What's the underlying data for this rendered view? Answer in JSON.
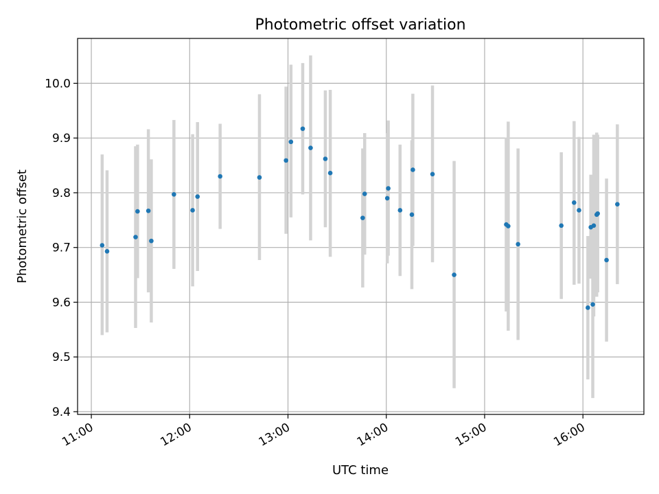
{
  "chart_data": {
    "type": "scatter",
    "title": "Photometric offset variation",
    "xlabel": "UTC time",
    "ylabel": "Photometric offset",
    "x_unit": "hours (UTC)",
    "xlim": [
      10.86,
      16.62
    ],
    "ylim": [
      9.395,
      10.082
    ],
    "grid": true,
    "colors": {
      "point": "#1f77b4",
      "errorbar": "#d3d3d3"
    },
    "x_ticks": [
      {
        "value": 11,
        "label": "11:00"
      },
      {
        "value": 12,
        "label": "12:00"
      },
      {
        "value": 13,
        "label": "13:00"
      },
      {
        "value": 14,
        "label": "14:00"
      },
      {
        "value": 15,
        "label": "15:00"
      },
      {
        "value": 16,
        "label": "16:00"
      }
    ],
    "y_ticks": [
      {
        "value": 9.4,
        "label": "9.4"
      },
      {
        "value": 9.5,
        "label": "9.5"
      },
      {
        "value": 9.6,
        "label": "9.6"
      },
      {
        "value": 9.7,
        "label": "9.7"
      },
      {
        "value": 9.8,
        "label": "9.8"
      },
      {
        "value": 9.9,
        "label": "9.9"
      },
      {
        "value": 10.0,
        "label": "10.0"
      }
    ],
    "points": [
      {
        "x": 11.11,
        "y": 9.704,
        "low": 9.54,
        "high": 9.87
      },
      {
        "x": 11.16,
        "y": 9.693,
        "low": 9.545,
        "high": 9.841
      },
      {
        "x": 11.45,
        "y": 9.719,
        "low": 9.553,
        "high": 9.885
      },
      {
        "x": 11.47,
        "y": 9.766,
        "low": 9.644,
        "high": 9.888
      },
      {
        "x": 11.58,
        "y": 9.767,
        "low": 9.618,
        "high": 9.916
      },
      {
        "x": 11.61,
        "y": 9.712,
        "low": 9.563,
        "high": 9.861
      },
      {
        "x": 11.84,
        "y": 9.797,
        "low": 9.661,
        "high": 9.933
      },
      {
        "x": 12.03,
        "y": 9.768,
        "low": 9.629,
        "high": 9.907
      },
      {
        "x": 12.08,
        "y": 9.793,
        "low": 9.657,
        "high": 9.929
      },
      {
        "x": 12.31,
        "y": 9.83,
        "low": 9.734,
        "high": 9.926
      },
      {
        "x": 12.71,
        "y": 9.828,
        "low": 9.677,
        "high": 9.98
      },
      {
        "x": 12.98,
        "y": 9.859,
        "low": 9.725,
        "high": 9.994
      },
      {
        "x": 13.03,
        "y": 9.893,
        "low": 9.755,
        "high": 10.034
      },
      {
        "x": 13.15,
        "y": 9.917,
        "low": 9.797,
        "high": 10.037
      },
      {
        "x": 13.23,
        "y": 9.882,
        "low": 9.713,
        "high": 10.051
      },
      {
        "x": 13.38,
        "y": 9.862,
        "low": 9.737,
        "high": 9.987
      },
      {
        "x": 13.43,
        "y": 9.836,
        "low": 9.683,
        "high": 9.988
      },
      {
        "x": 13.76,
        "y": 9.754,
        "low": 9.627,
        "high": 9.881
      },
      {
        "x": 13.78,
        "y": 9.798,
        "low": 9.687,
        "high": 9.909
      },
      {
        "x": 14.01,
        "y": 9.79,
        "low": 9.671,
        "high": 9.909
      },
      {
        "x": 14.02,
        "y": 9.808,
        "low": 9.685,
        "high": 9.932
      },
      {
        "x": 14.14,
        "y": 9.768,
        "low": 9.648,
        "high": 9.888
      },
      {
        "x": 14.26,
        "y": 9.76,
        "low": 9.624,
        "high": 9.896
      },
      {
        "x": 14.27,
        "y": 9.842,
        "low": 9.703,
        "high": 9.981
      },
      {
        "x": 14.47,
        "y": 9.834,
        "low": 9.673,
        "high": 9.996
      },
      {
        "x": 14.69,
        "y": 9.65,
        "low": 9.443,
        "high": 9.858
      },
      {
        "x": 15.22,
        "y": 9.742,
        "low": 9.583,
        "high": 9.901
      },
      {
        "x": 15.24,
        "y": 9.739,
        "low": 9.548,
        "high": 9.93
      },
      {
        "x": 15.34,
        "y": 9.706,
        "low": 9.531,
        "high": 9.881
      },
      {
        "x": 15.78,
        "y": 9.74,
        "low": 9.606,
        "high": 9.874
      },
      {
        "x": 15.91,
        "y": 9.782,
        "low": 9.632,
        "high": 9.931
      },
      {
        "x": 15.96,
        "y": 9.768,
        "low": 9.634,
        "high": 9.902
      },
      {
        "x": 16.05,
        "y": 9.59,
        "low": 9.459,
        "high": 9.721
      },
      {
        "x": 16.08,
        "y": 9.737,
        "low": 9.643,
        "high": 9.833
      },
      {
        "x": 16.1,
        "y": 9.596,
        "low": 9.425,
        "high": 9.767
      },
      {
        "x": 16.11,
        "y": 9.74,
        "low": 9.574,
        "high": 9.906
      },
      {
        "x": 16.14,
        "y": 9.76,
        "low": 9.61,
        "high": 9.91
      },
      {
        "x": 16.15,
        "y": 9.762,
        "low": 9.618,
        "high": 9.906
      },
      {
        "x": 16.24,
        "y": 9.677,
        "low": 9.528,
        "high": 9.826
      },
      {
        "x": 16.35,
        "y": 9.779,
        "low": 9.633,
        "high": 9.925
      }
    ]
  }
}
